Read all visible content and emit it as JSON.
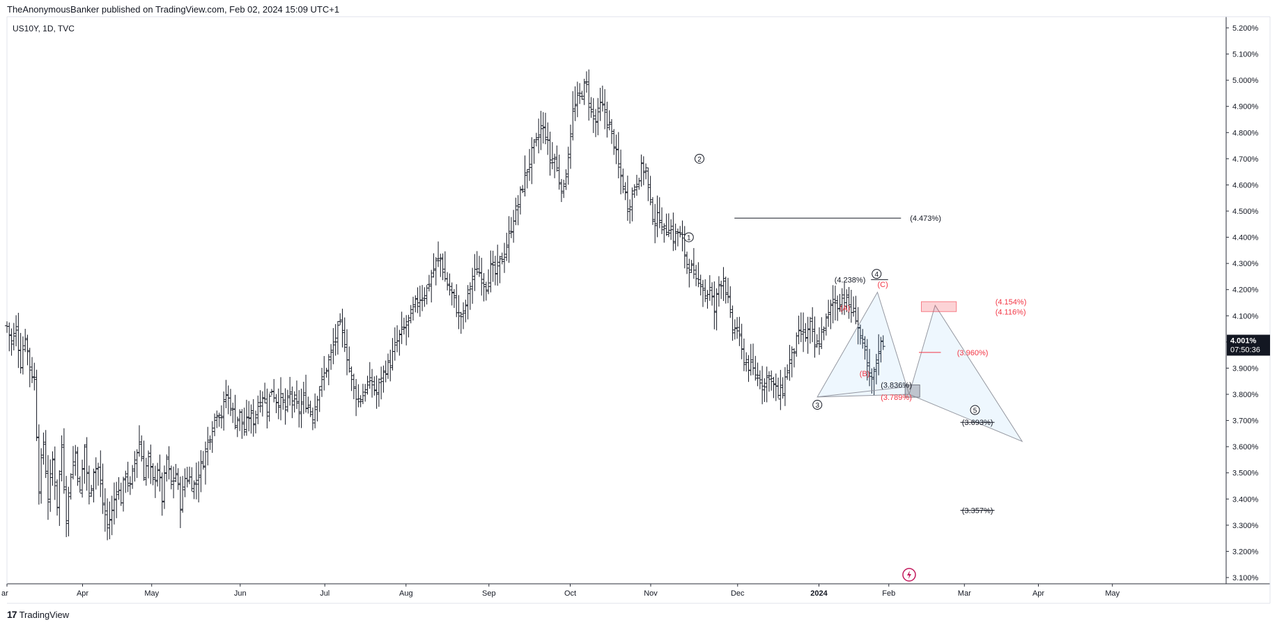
{
  "header": {
    "text": "TheAnonymousBanker published on TradingView.com, Feb 02, 2024 15:09 UTC+1"
  },
  "symbol": {
    "text": "US10Y, 1D, TVC"
  },
  "footer": {
    "logo": "17",
    "text": "TradingView"
  },
  "price_label": {
    "value": "4.001%",
    "countdown": "07:50:36"
  },
  "chart_data": {
    "type": "ohlc",
    "title": "US10Y, 1D, TVC",
    "ylim": [
      3.1,
      5.2
    ],
    "y_ticks": [
      {
        "v": 5.2,
        "label": "5.200%"
      },
      {
        "v": 5.1,
        "label": "5.100%"
      },
      {
        "v": 5.0,
        "label": "5.000%"
      },
      {
        "v": 4.9,
        "label": "4.900%"
      },
      {
        "v": 4.8,
        "label": "4.800%"
      },
      {
        "v": 4.7,
        "label": "4.700%"
      },
      {
        "v": 4.6,
        "label": "4.600%"
      },
      {
        "v": 4.5,
        "label": "4.500%"
      },
      {
        "v": 4.4,
        "label": "4.400%"
      },
      {
        "v": 4.3,
        "label": "4.300%"
      },
      {
        "v": 4.2,
        "label": "4.200%"
      },
      {
        "v": 4.1,
        "label": "4.100%"
      },
      {
        "v": 4.0,
        "label": "4.000%"
      },
      {
        "v": 3.9,
        "label": "3.900%"
      },
      {
        "v": 3.8,
        "label": "3.800%"
      },
      {
        "v": 3.7,
        "label": "3.700%"
      },
      {
        "v": 3.6,
        "label": "3.600%"
      },
      {
        "v": 3.5,
        "label": "3.500%"
      },
      {
        "v": 3.4,
        "label": "3.400%"
      },
      {
        "v": 3.3,
        "label": "3.300%"
      },
      {
        "v": 3.2,
        "label": "3.200%"
      },
      {
        "v": 3.1,
        "label": "3.100%"
      }
    ],
    "x_ticks": [
      {
        "label": "ar",
        "bold": false
      },
      {
        "label": "Apr",
        "bold": false
      },
      {
        "label": "May",
        "bold": false
      },
      {
        "label": "Jun",
        "bold": false
      },
      {
        "label": "Jul",
        "bold": false
      },
      {
        "label": "Aug",
        "bold": false
      },
      {
        "label": "Sep",
        "bold": false
      },
      {
        "label": "Oct",
        "bold": false
      },
      {
        "label": "Nov",
        "bold": false
      },
      {
        "label": "Dec",
        "bold": false
      },
      {
        "label": "2024",
        "bold": true
      },
      {
        "label": "Feb",
        "bold": false
      },
      {
        "label": "Mar",
        "bold": false
      },
      {
        "label": "Apr",
        "bold": false
      },
      {
        "label": "May",
        "bold": false
      }
    ],
    "series_path": [
      [
        4.06,
        4.0,
        4.05,
        3.92,
        4.03,
        3.9,
        3.86,
        3.45,
        3.62,
        3.4,
        3.55,
        3.38,
        3.6,
        3.33,
        3.5,
        3.58,
        3.42,
        3.6,
        3.4,
        3.52
      ],
      [
        3.52,
        3.38,
        3.3,
        3.35,
        3.45,
        3.4,
        3.5,
        3.44,
        3.55,
        3.62,
        3.5,
        3.55,
        3.46,
        3.52,
        3.4,
        3.55,
        3.45,
        3.5,
        3.38,
        3.48
      ],
      [
        3.48,
        3.45,
        3.5,
        3.55,
        3.62,
        3.68,
        3.74,
        3.72,
        3.8,
        3.76,
        3.7,
        3.72,
        3.66,
        3.72,
        3.7,
        3.76,
        3.8,
        3.75,
        3.82,
        3.78
      ],
      [
        3.78,
        3.74,
        3.8,
        3.76,
        3.74,
        3.78,
        3.76,
        3.72,
        3.8,
        3.85,
        3.9,
        3.95,
        4.02,
        4.06,
        4.0,
        3.9,
        3.82,
        3.78,
        3.8,
        3.84
      ],
      [
        3.84,
        3.8,
        3.86,
        3.9,
        3.92,
        3.98,
        4.02,
        4.05,
        4.08,
        4.12,
        4.16,
        4.18,
        4.2,
        4.25,
        4.3,
        4.32,
        4.24,
        4.2,
        4.16,
        4.1
      ],
      [
        4.1,
        4.18,
        4.24,
        4.28,
        4.25,
        4.22,
        4.28,
        4.26,
        4.3,
        4.34,
        4.4,
        4.48,
        4.52,
        4.6,
        4.66,
        4.72,
        4.76,
        4.82,
        4.8,
        4.7
      ],
      [
        4.7,
        4.62,
        4.58,
        4.72,
        4.88,
        4.92,
        4.96,
        4.98,
        4.88,
        4.84,
        4.9,
        4.88,
        4.82,
        4.76,
        4.66,
        4.6,
        4.52,
        4.56,
        4.62,
        4.66
      ],
      [
        4.66,
        4.52,
        4.46,
        4.48,
        4.42,
        4.45,
        4.4,
        4.42,
        4.38,
        4.3,
        4.28,
        4.22,
        4.24,
        4.18,
        4.2,
        4.12,
        4.22,
        4.25,
        4.15,
        4.05
      ],
      [
        4.05,
        3.96,
        3.92,
        3.9,
        3.88,
        3.86,
        3.84,
        3.88,
        3.83,
        3.8,
        3.82,
        3.9,
        3.95,
        4.0,
        4.04,
        4.02,
        4.06,
        3.98,
        4.0,
        4.06,
        4.1,
        4.16,
        4.14,
        4.18,
        4.15,
        4.12,
        4.1,
        4.02,
        3.95,
        3.85,
        3.87,
        3.98,
        4.0
      ]
    ],
    "annotations": {
      "wave_labels": [
        {
          "label": "1",
          "x_frac": 0.5593,
          "y": 4.4
        },
        {
          "label": "2",
          "x_frac": 0.568,
          "y": 4.7
        },
        {
          "label": "3",
          "x_frac": 0.6647,
          "y": 3.76
        },
        {
          "label": "4",
          "x_frac": 0.7133,
          "y": 4.26
        },
        {
          "label": "5",
          "x_frac": 0.794,
          "y": 3.74
        }
      ],
      "red_labels": [
        {
          "text": "(A)",
          "x_frac": 0.6833,
          "y": 4.13
        },
        {
          "text": "(B)",
          "x_frac": 0.6993,
          "y": 3.88
        },
        {
          "text": "(C)",
          "x_frac": 0.714,
          "y": 4.22
        },
        {
          "text": "(4.154%)",
          "x_frac": 0.8107,
          "y": 4.154
        },
        {
          "text": "(4.116%)",
          "x_frac": 0.8107,
          "y": 4.116
        },
        {
          "text": "(3.960%)",
          "x_frac": 0.7793,
          "y": 3.96
        },
        {
          "text": "(3.789%)",
          "x_frac": 0.7167,
          "y": 3.789
        }
      ],
      "black_labels": [
        {
          "text": "(4.473%)",
          "x_frac": 0.7407,
          "y": 4.473
        },
        {
          "text": "(4.238%)",
          "x_frac": 0.6787,
          "y": 4.238
        },
        {
          "text": "(3.836%)",
          "x_frac": 0.7167,
          "y": 3.836
        },
        {
          "text": "(3.693%)",
          "x_frac": 0.7833,
          "y": 3.693
        },
        {
          "text": "(3.357%)",
          "x_frac": 0.7833,
          "y": 3.357
        }
      ]
    }
  }
}
